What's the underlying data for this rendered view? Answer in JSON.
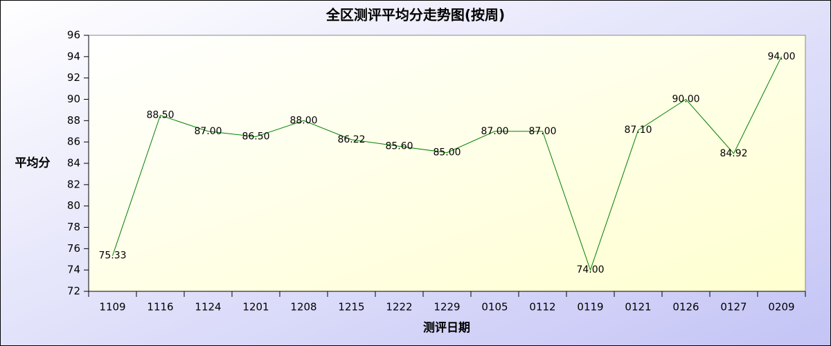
{
  "chart_data": {
    "type": "line",
    "title": "全区测评平均分走势图(按周)",
    "x_label": "测评日期",
    "y_label": "平均分",
    "categories": [
      "1109",
      "1116",
      "1124",
      "1201",
      "1208",
      "1215",
      "1222",
      "1229",
      "0105",
      "0112",
      "0119",
      "0121",
      "0126",
      "0127",
      "0209"
    ],
    "series": [
      {
        "color": "#008000",
        "values": [
          75.33,
          88.5,
          87,
          86.5,
          88,
          86.22,
          85.6,
          85,
          87,
          87,
          74,
          87.1,
          90,
          84.92,
          94
        ],
        "value_labels": [
          "75.33",
          "88.50",
          "87.00",
          "86.50",
          "88.00",
          "86.22",
          "85.60",
          "85.00",
          "87.00",
          "87.00",
          "74.00",
          "87.10",
          "90.00",
          "84.92",
          "94.00"
        ]
      }
    ],
    "ylim": [
      72,
      96
    ],
    "yticks": [
      72,
      74,
      76,
      78,
      80,
      82,
      84,
      86,
      88,
      90,
      92,
      94,
      96
    ]
  }
}
